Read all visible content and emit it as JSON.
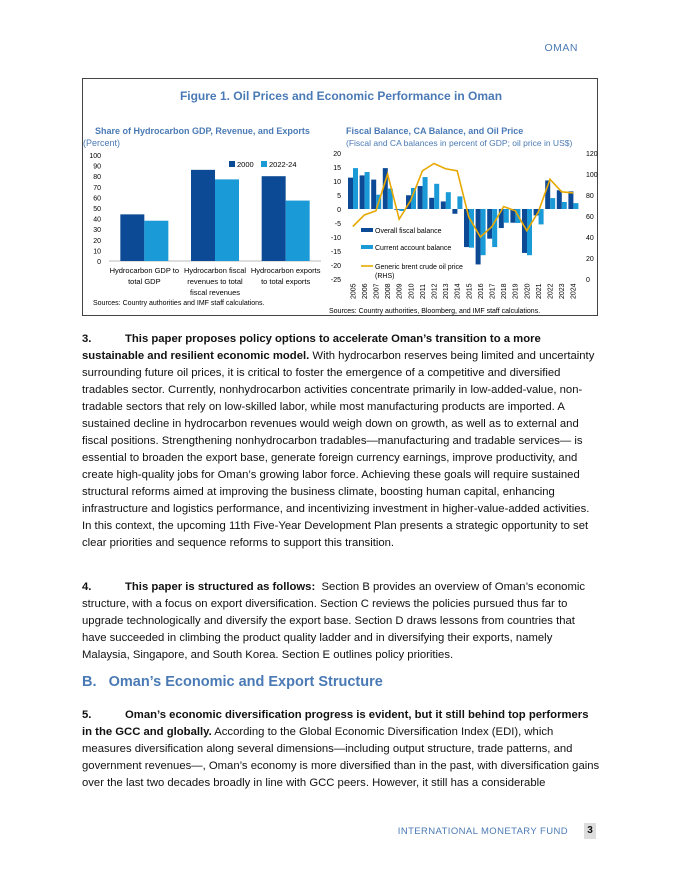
{
  "header": "OMAN",
  "figure": {
    "title": "Figure 1. Oil Prices and Economic Performance in Oman",
    "colors": {
      "dark": "#0d4a96",
      "light": "#1a9ad6",
      "oil": "#e8a800",
      "title": "#4a7ab5"
    }
  },
  "chart_data": [
    {
      "type": "bar",
      "title": "Share of Hydrocarbon GDP, Revenue, and Exports",
      "subtitle": "(Percent)",
      "categories": [
        [
          "Hydrocarbon GDP to",
          "total GDP"
        ],
        [
          "Hydrocarbon fiscal",
          "revenues to total",
          "fiscal revenues"
        ],
        [
          "Hydrocarbon exports",
          "to total exports"
        ]
      ],
      "series": [
        {
          "name": "2000",
          "values": [
            44,
            86,
            80
          ]
        },
        {
          "name": "2022-24",
          "values": [
            38,
            77,
            57
          ]
        }
      ],
      "ylim": [
        0,
        100
      ],
      "yticks": [
        0,
        10,
        20,
        30,
        40,
        50,
        60,
        70,
        80,
        90,
        100
      ],
      "legend": "top-right",
      "source": "Sources: Country authorities and IMF staff calculations."
    },
    {
      "type": "bar+line",
      "title": "Fiscal Balance, CA Balance, and Oil Price",
      "subtitle": "(Fiscal and CA balances in percent of GDP; oil price in US$)",
      "categories": [
        "2005",
        "2006",
        "2007",
        "2008",
        "2009",
        "2010",
        "2011",
        "2012",
        "2013",
        "2014",
        "2015",
        "2016",
        "2017",
        "2018",
        "2019",
        "2020",
        "2021",
        "2022",
        "2023",
        "2024"
      ],
      "series": [
        {
          "name": "Overall fiscal balance",
          "axis": "left",
          "values": [
            11.2,
            12,
            10.5,
            14.6,
            -0.3,
            4.9,
            8.2,
            4,
            2.7,
            -1.7,
            -13.6,
            -19.8,
            -10.6,
            -6.8,
            -4.9,
            -15.7,
            -2.3,
            10.2,
            6.7,
            6.3
          ]
        },
        {
          "name": "Current account balance",
          "axis": "left",
          "values": [
            14.6,
            13.2,
            5.1,
            7.3,
            -0.7,
            7.5,
            11.4,
            9,
            6,
            4.5,
            -13.8,
            -16.5,
            -13.6,
            -4.9,
            -5,
            -16.5,
            -5.5,
            3.9,
            2.5,
            2.1
          ]
        },
        {
          "name": "Generic brent crude oil price",
          "name2": "(RHS)",
          "axis": "right",
          "values": [
            50,
            61,
            65,
            100,
            57,
            75,
            103,
            110,
            105,
            103,
            59,
            40,
            50,
            69,
            65,
            46,
            64,
            95,
            83,
            82
          ]
        }
      ],
      "ylim": [
        -25,
        20
      ],
      "yticks": [
        20,
        15,
        10,
        5,
        0,
        -5,
        -10,
        -15,
        -20,
        -25
      ],
      "y2lim": [
        0,
        120
      ],
      "y2ticks": [
        120,
        100,
        80,
        60,
        40,
        20,
        0
      ],
      "source": "Sources: Country authorities, Bloomberg, and IMF staff calculations."
    }
  ],
  "paragraphs": [
    {
      "num": "3.",
      "lead": "This paper proposes policy options to accelerate Oman’s transition to a more sustainable and resilient economic model.",
      "text": " With hydrocarbon reserves being limited and uncertainty surrounding future oil prices, it is critical to foster the emergence of a competitive and diversified tradables sector. Currently, nonhydrocarbon activities concentrate primarily in low-added-value, non-tradable sectors that rely on low-skilled labor, while most manufacturing products are imported. A sustained decline in hydrocarbon revenues would weigh down on growth, as well as to external and fiscal positions. Strengthening nonhydrocarbon tradables—manufacturing and tradable services— is essential to broaden the export base, generate foreign currency earnings, improve productivity, and create high-quality jobs for Oman’s growing labor force. Achieving these goals will require sustained structural reforms aimed at improving the business climate, boosting human capital, enhancing infrastructure and logistics performance, and incentivizing investment in higher-value-added activities. In this context, the upcoming 11th Five-Year Development Plan presents a strategic opportunity to set clear priorities and sequence reforms to support this transition."
    },
    {
      "num": "4.",
      "lead": "This paper is structured as follows:",
      "text": "  Section B provides an overview of Oman’s economic structure, with a focus on export diversification. Section C reviews the policies pursued thus far to upgrade technologically and diversify the export base. Section D draws lessons from countries that have succeeded in climbing the product quality ladder and in diversifying their exports, namely Malaysia, Singapore, and South Korea. Section E outlines policy priorities."
    },
    {
      "num": "5.",
      "lead": "Oman’s economic diversification progress is evident, but it still behind top performers in the GCC and globally.",
      "text": " According to the Global Economic Diversification Index (EDI), which measures diversification along several dimensions—including output structure, trade patterns, and government revenues—, Oman’s economy is more diversified than in the past, with diversification gains over the last two decades broadly in line with GCC peers. However, it still has a considerable"
    }
  ],
  "section_heading": "B.   Oman’s Economic and Export Structure",
  "footer": {
    "org": "INTERNATIONAL MONETARY FUND",
    "page": "3"
  }
}
